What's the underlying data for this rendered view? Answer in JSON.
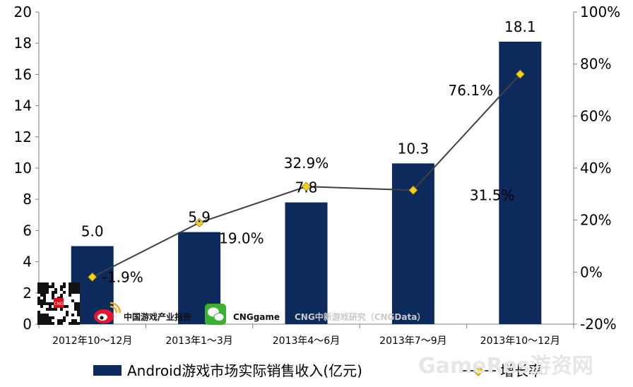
{
  "chart_data": {
    "type": "bar",
    "categories": [
      "2012年10～12月",
      "2013年1～3月",
      "2013年4～6月",
      "2013年7～9月",
      "2013年10～12月"
    ],
    "series": [
      {
        "name": "Android游戏市场实际销售收入(亿元)",
        "type": "bar",
        "axis": "left",
        "values": [
          5.0,
          5.9,
          7.8,
          10.3,
          18.1
        ],
        "labels": [
          "5.0",
          "5.9",
          "7.8",
          "10.3",
          "18.1"
        ]
      },
      {
        "name": "增长率",
        "type": "line",
        "axis": "right",
        "values": [
          -1.9,
          19.0,
          32.9,
          31.5,
          76.1
        ],
        "labels": [
          "-1.9%",
          "19.0%",
          "32.9%",
          "31.5%",
          "76.1%"
        ]
      }
    ],
    "left_axis": {
      "ylim": [
        0,
        20
      ],
      "ticks": [
        "0",
        "2",
        "4",
        "6",
        "8",
        "10",
        "12",
        "14",
        "16",
        "18",
        "20"
      ]
    },
    "right_axis": {
      "ylim": [
        -20,
        100
      ],
      "ticks": [
        "-20%",
        "0%",
        "20%",
        "40%",
        "60%",
        "80%",
        "100%"
      ]
    },
    "grid": false,
    "legend_position": "bottom",
    "colors": {
      "bar": "#0d2a5c",
      "line": "#404040",
      "marker": "#f2d21b"
    }
  },
  "watermarks": {
    "weibo": "中国游戏产业报告",
    "wechat": "CNGgame",
    "research": "CNG中新游戏研究（CNGData）",
    "site": "GameRes游资网",
    "qr_badge": "CNG"
  }
}
